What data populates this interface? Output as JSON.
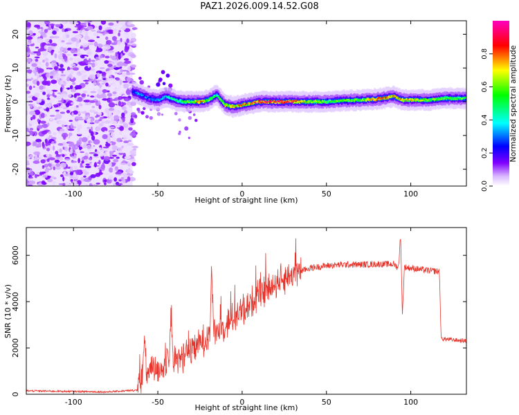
{
  "figure": {
    "title": "PAZ1.2026.009.14.52.G08"
  },
  "chart_data": [
    {
      "type": "heatmap",
      "name": "spectrogram",
      "xlabel": "Height of straight line (km)",
      "ylabel": "Frequency (Hz)",
      "xlim": [
        -128,
        133
      ],
      "ylim": [
        -25,
        24
      ],
      "xticks": [
        -100,
        -50,
        0,
        50,
        100
      ],
      "xtick_labels": [
        "-100",
        "-50",
        "0",
        "50",
        "100"
      ],
      "yticks": [
        -20,
        -10,
        0,
        10,
        20
      ],
      "ytick_labels": [
        "-20",
        "-10",
        "0",
        "10",
        "20"
      ],
      "colorbar": {
        "label": "Normalized spectral amplitude",
        "range": [
          0,
          1
        ],
        "ticks": [
          0,
          0.2,
          0.4,
          0.6,
          0.8
        ],
        "tick_labels": [
          "0.0",
          "0.2",
          "0.4",
          "0.6",
          "0.8"
        ],
        "colormap": [
          "#ffffff",
          "#d9b8ff",
          "#8000ff",
          "#0000ff",
          "#00ffff",
          "#00ff00",
          "#ffff00",
          "#ff0000",
          "#ff00c0"
        ]
      },
      "noise_region_x": [
        -128,
        -65
      ],
      "ridge": {
        "x": [
          -65,
          -60,
          -55,
          -50,
          -45,
          -40,
          -35,
          -30,
          -25,
          -20,
          -15,
          -10,
          -5,
          0,
          5,
          10,
          20,
          30,
          40,
          50,
          60,
          70,
          80,
          90,
          95,
          100,
          110,
          120,
          133
        ],
        "freq": [
          3,
          2,
          1,
          0.5,
          1.5,
          0.5,
          0,
          0,
          0,
          0.5,
          2,
          -1,
          -1.5,
          -1,
          -0.5,
          0,
          0,
          0,
          0,
          0,
          0.3,
          0.5,
          0.8,
          1.5,
          0.5,
          0.5,
          0.5,
          1,
          1
        ],
        "amp": [
          0.3,
          0.35,
          0.3,
          0.35,
          0.4,
          0.5,
          0.55,
          0.6,
          0.8,
          0.6,
          0.5,
          0.7,
          0.8,
          0.75,
          0.8,
          0.9,
          0.95,
          0.85,
          0.7,
          0.6,
          0.6,
          0.65,
          0.85,
          0.8,
          0.75,
          0.7,
          0.6,
          0.6,
          0.55
        ]
      }
    },
    {
      "type": "line",
      "name": "snr",
      "xlabel": "Height of straight line (km)",
      "ylabel": "SNR (10 * v/v)",
      "xlim": [
        -128,
        133
      ],
      "ylim": [
        0,
        7200
      ],
      "color": "#e8332a",
      "xticks": [
        -100,
        -50,
        0,
        50,
        100
      ],
      "xtick_labels": [
        "-100",
        "-50",
        "0",
        "50",
        "100"
      ],
      "yticks": [
        0,
        2000,
        4000,
        6000
      ],
      "ytick_labels": [
        "0",
        "2000",
        "4000",
        "6000"
      ],
      "baseline": {
        "x": [
          -128,
          -100,
          -80,
          -62,
          -58,
          -50,
          -40,
          -30,
          -20,
          -10,
          0,
          10,
          20,
          30,
          40,
          50,
          60,
          70,
          80,
          90,
          92,
          95,
          100,
          110,
          117,
          118,
          125,
          133
        ],
        "y": [
          150,
          120,
          100,
          180,
          900,
          1100,
          1400,
          1900,
          2500,
          3000,
          3600,
          4300,
          4800,
          5200,
          5450,
          5550,
          5600,
          5600,
          5620,
          5620,
          5500,
          5500,
          5450,
          5350,
          5300,
          2400,
          2350,
          2300
        ]
      },
      "spikes": [
        {
          "x": -58,
          "y": 2400
        },
        {
          "x": -42,
          "y": 3600
        },
        {
          "x": -18,
          "y": 5200
        },
        {
          "x": 94,
          "y": 7100
        },
        {
          "x": 95,
          "y": 3300
        }
      ]
    }
  ]
}
